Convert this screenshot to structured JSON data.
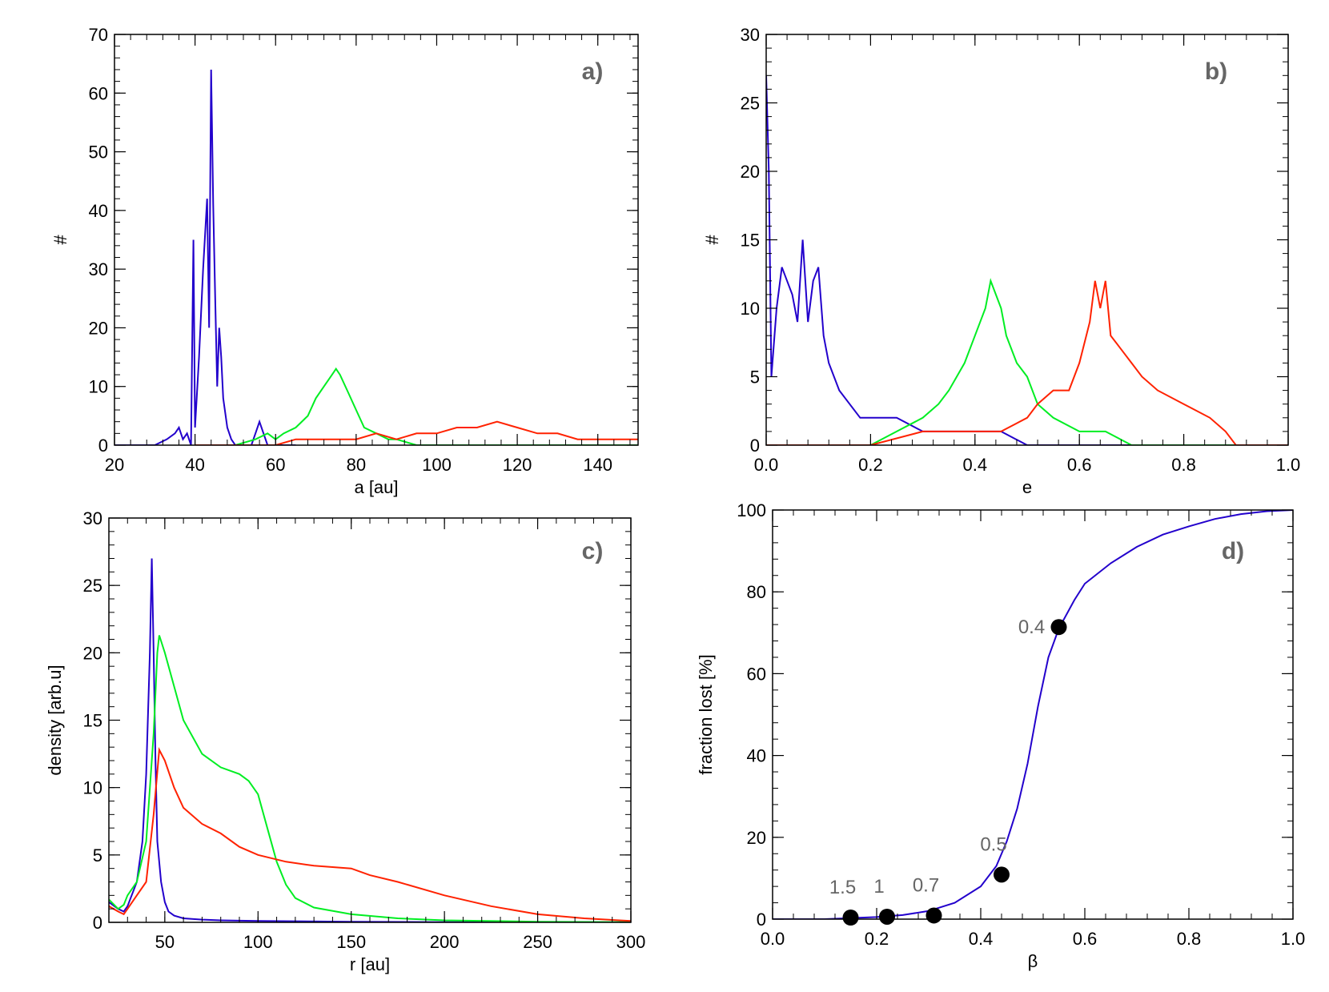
{
  "colors": {
    "blue": "#2200cc",
    "green": "#00ee22",
    "red": "#ff2200",
    "frame": "#000000",
    "tag": "#666666",
    "point": "#000000"
  },
  "chart_data": [
    {
      "type": "line",
      "panel_label": "a)",
      "xlabel": "a [au]",
      "ylabel": "#",
      "xlim": [
        20,
        150
      ],
      "ylim": [
        0,
        70
      ],
      "xticks": [
        20,
        40,
        60,
        80,
        100,
        120,
        140
      ],
      "xtick_labels": [
        "20",
        "40",
        "60",
        "80",
        "100",
        "120",
        "140"
      ],
      "yticks": [
        0,
        10,
        20,
        30,
        40,
        50,
        60,
        70
      ],
      "ytick_labels": [
        "0",
        "10",
        "20",
        "30",
        "40",
        "50",
        "60",
        "70"
      ],
      "series": [
        {
          "name": "blue",
          "color": "blue",
          "x": [
            20,
            30,
            33,
            35,
            36,
            37,
            38,
            39,
            39.6,
            40,
            41,
            42,
            43,
            43.5,
            44,
            44.5,
            45,
            45.5,
            46,
            46.5,
            47,
            48,
            49,
            50,
            52,
            54,
            55,
            56,
            58,
            60,
            65
          ],
          "y": [
            0,
            0,
            1,
            2,
            3,
            1,
            2,
            0,
            35,
            3,
            15,
            30,
            42,
            20,
            64,
            41,
            25,
            10,
            20,
            15,
            8,
            3,
            1,
            0,
            0,
            0,
            2,
            4,
            0,
            0,
            0
          ]
        },
        {
          "name": "green",
          "color": "green",
          "x": [
            40,
            50,
            55,
            58,
            60,
            62,
            65,
            68,
            70,
            72,
            74,
            75,
            76,
            78,
            80,
            82,
            85,
            88,
            90,
            95,
            100,
            110,
            120,
            150
          ],
          "y": [
            0,
            0,
            1,
            2,
            1,
            2,
            3,
            5,
            8,
            10,
            12,
            13,
            12,
            9,
            6,
            3,
            2,
            1,
            1,
            0,
            0,
            0,
            0,
            0
          ]
        },
        {
          "name": "red",
          "color": "red",
          "x": [
            40,
            55,
            60,
            65,
            70,
            80,
            85,
            90,
            95,
            100,
            105,
            110,
            115,
            120,
            125,
            130,
            135,
            140,
            145,
            150
          ],
          "y": [
            0,
            0,
            0,
            1,
            1,
            1,
            2,
            1,
            2,
            2,
            3,
            3,
            4,
            3,
            2,
            2,
            1,
            1,
            1,
            1
          ]
        }
      ]
    },
    {
      "type": "line",
      "panel_label": "b)",
      "xlabel": "e",
      "ylabel": "#",
      "xlim": [
        0.0,
        1.0
      ],
      "ylim": [
        0,
        30
      ],
      "xticks": [
        0.0,
        0.2,
        0.4,
        0.6,
        0.8,
        1.0
      ],
      "xtick_labels": [
        "0.0",
        "0.2",
        "0.4",
        "0.6",
        "0.8",
        "1.0"
      ],
      "yticks": [
        0,
        5,
        10,
        15,
        20,
        25,
        30
      ],
      "ytick_labels": [
        "0",
        "5",
        "10",
        "15",
        "20",
        "25",
        "30"
      ],
      "series": [
        {
          "name": "blue",
          "color": "blue",
          "x": [
            0.0,
            0.005,
            0.01,
            0.02,
            0.03,
            0.04,
            0.05,
            0.06,
            0.07,
            0.08,
            0.09,
            0.1,
            0.11,
            0.12,
            0.14,
            0.16,
            0.18,
            0.2,
            0.25,
            0.3,
            0.35,
            0.4,
            0.45,
            0.5,
            0.55,
            0.6,
            0.7,
            0.8,
            0.9,
            1.0
          ],
          "y": [
            27,
            20,
            5,
            10,
            13,
            12,
            11,
            9,
            15,
            9,
            12,
            13,
            8,
            6,
            4,
            3,
            2,
            2,
            2,
            1,
            1,
            1,
            1,
            0,
            0,
            0,
            0,
            0,
            0,
            0
          ]
        },
        {
          "name": "green",
          "color": "green",
          "x": [
            0.0,
            0.1,
            0.2,
            0.25,
            0.3,
            0.33,
            0.35,
            0.38,
            0.4,
            0.42,
            0.43,
            0.44,
            0.45,
            0.46,
            0.48,
            0.5,
            0.52,
            0.55,
            0.6,
            0.65,
            0.7,
            0.8,
            1.0
          ],
          "y": [
            0,
            0,
            0,
            1,
            2,
            3,
            4,
            6,
            8,
            10,
            12,
            11,
            10,
            8,
            6,
            5,
            3,
            2,
            1,
            1,
            0,
            0,
            0
          ]
        },
        {
          "name": "red",
          "color": "red",
          "x": [
            0.0,
            0.15,
            0.2,
            0.3,
            0.4,
            0.45,
            0.5,
            0.52,
            0.55,
            0.58,
            0.6,
            0.62,
            0.63,
            0.64,
            0.65,
            0.66,
            0.68,
            0.7,
            0.72,
            0.75,
            0.8,
            0.85,
            0.88,
            0.9,
            1.0
          ],
          "y": [
            0,
            0,
            0,
            1,
            1,
            1,
            2,
            3,
            4,
            4,
            6,
            9,
            12,
            10,
            12,
            8,
            7,
            6,
            5,
            4,
            3,
            2,
            1,
            0,
            0
          ]
        }
      ]
    },
    {
      "type": "line",
      "panel_label": "c)",
      "xlabel": "r [au]",
      "ylabel": "density [arb.u]",
      "xlim": [
        20,
        300
      ],
      "ylim": [
        0,
        30
      ],
      "xticks": [
        50,
        100,
        150,
        200,
        250,
        300
      ],
      "xtick_labels": [
        "50",
        "100",
        "150",
        "200",
        "250",
        "300"
      ],
      "yticks": [
        0,
        5,
        10,
        15,
        20,
        25,
        30
      ],
      "ytick_labels": [
        "0",
        "5",
        "10",
        "15",
        "20",
        "25",
        "30"
      ],
      "series": [
        {
          "name": "blue",
          "color": "blue",
          "x": [
            20,
            25,
            28,
            30,
            35,
            38,
            40,
            42,
            43,
            44,
            45,
            46,
            48,
            50,
            52,
            55,
            60,
            70,
            80,
            100,
            150,
            200,
            300
          ],
          "y": [
            1.5,
            1,
            0.8,
            1.2,
            3,
            6,
            11,
            20,
            27,
            20,
            12,
            6,
            3,
            1.5,
            0.8,
            0.5,
            0.3,
            0.2,
            0.15,
            0.1,
            0.05,
            0.02,
            0.01
          ]
        },
        {
          "name": "green",
          "color": "green",
          "x": [
            20,
            25,
            28,
            30,
            35,
            40,
            44,
            46,
            47,
            50,
            55,
            60,
            70,
            80,
            90,
            95,
            100,
            105,
            110,
            115,
            120,
            130,
            150,
            175,
            200,
            250,
            300
          ],
          "y": [
            1.7,
            1,
            1.3,
            2,
            3,
            6,
            14,
            20,
            21.3,
            20,
            17.5,
            15,
            12.5,
            11.5,
            11,
            10.5,
            9.5,
            7,
            4.5,
            2.8,
            1.8,
            1.1,
            0.6,
            0.3,
            0.15,
            0.05,
            0.02
          ]
        },
        {
          "name": "red",
          "color": "red",
          "x": [
            20,
            25,
            28,
            30,
            35,
            40,
            44,
            47,
            50,
            55,
            60,
            70,
            80,
            90,
            100,
            115,
            130,
            150,
            160,
            175,
            200,
            225,
            250,
            275,
            300
          ],
          "y": [
            1.2,
            0.8,
            0.6,
            1,
            2,
            3,
            8,
            12.8,
            12,
            10,
            8.5,
            7.3,
            6.6,
            5.6,
            5,
            4.5,
            4.2,
            4,
            3.5,
            3,
            2,
            1.2,
            0.6,
            0.3,
            0.1
          ]
        }
      ]
    },
    {
      "type": "line",
      "panel_label": "d)",
      "xlabel": "β",
      "ylabel": "fraction lost [%]",
      "xlim": [
        0.0,
        1.0
      ],
      "ylim": [
        0,
        100
      ],
      "xticks": [
        0.0,
        0.2,
        0.4,
        0.6,
        0.8,
        1.0
      ],
      "xtick_labels": [
        "0.0",
        "0.2",
        "0.4",
        "0.6",
        "0.8",
        "1.0"
      ],
      "yticks": [
        0,
        20,
        40,
        60,
        80,
        100
      ],
      "ytick_labels": [
        "0",
        "20",
        "40",
        "60",
        "80",
        "100"
      ],
      "series": [
        {
          "name": "curve",
          "color": "blue",
          "x": [
            0.0,
            0.1,
            0.2,
            0.25,
            0.3,
            0.35,
            0.4,
            0.43,
            0.45,
            0.47,
            0.49,
            0.5,
            0.51,
            0.53,
            0.55,
            0.58,
            0.6,
            0.65,
            0.7,
            0.75,
            0.8,
            0.85,
            0.9,
            0.95,
            1.0
          ],
          "y": [
            0,
            0,
            0.5,
            1,
            2,
            4,
            8,
            13,
            19,
            27,
            38,
            45,
            52,
            64,
            71,
            78,
            82,
            87,
            91,
            94,
            96,
            97.8,
            99,
            99.7,
            100
          ]
        }
      ],
      "points": [
        {
          "label": "1.5",
          "x": 0.15,
          "y": 0
        },
        {
          "label": "1",
          "x": 0.22,
          "y": 0.2
        },
        {
          "label": "0.7",
          "x": 0.31,
          "y": 0.5
        },
        {
          "label": "0.5",
          "x": 0.44,
          "y": 10.5
        },
        {
          "label": "0.4",
          "x": 0.55,
          "y": 71
        }
      ]
    }
  ]
}
